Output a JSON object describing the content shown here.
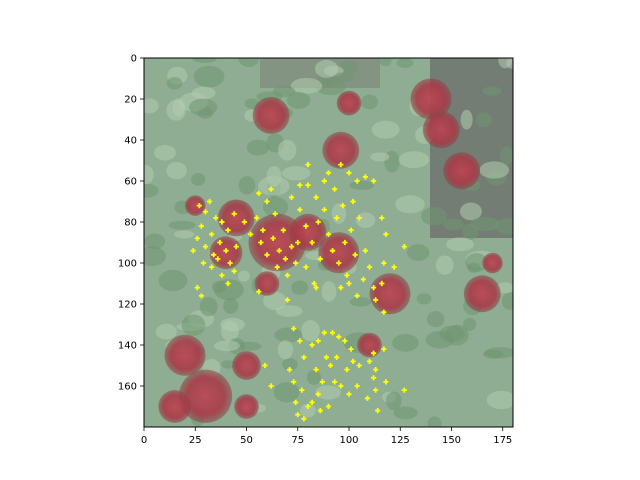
{
  "chart_data": {
    "type": "scatter",
    "title": "",
    "xlabel": "",
    "ylabel": "",
    "xlim": [
      0,
      180
    ],
    "ylim": [
      180,
      0
    ],
    "x_ticks": [
      0,
      25,
      50,
      75,
      100,
      125,
      150,
      175
    ],
    "y_ticks": [
      0,
      20,
      40,
      60,
      80,
      100,
      120,
      140,
      160
    ],
    "grid": false,
    "background": "downscaled photo of red roses among green foliage",
    "series": [
      {
        "marker": "+",
        "color": "#ffff00",
        "points": [
          [
            27,
            72
          ],
          [
            30,
            75
          ],
          [
            32,
            70
          ],
          [
            35,
            78
          ],
          [
            28,
            82
          ],
          [
            33,
            86
          ],
          [
            38,
            80
          ],
          [
            41,
            84
          ],
          [
            44,
            76
          ],
          [
            37,
            90
          ],
          [
            30,
            92
          ],
          [
            34,
            96
          ],
          [
            40,
            94
          ],
          [
            45,
            92
          ],
          [
            29,
            100
          ],
          [
            33,
            102
          ],
          [
            36,
            98
          ],
          [
            42,
            100
          ],
          [
            38,
            106
          ],
          [
            41,
            110
          ],
          [
            44,
            104
          ],
          [
            26,
            112
          ],
          [
            28,
            116
          ],
          [
            26,
            88
          ],
          [
            49,
            80
          ],
          [
            52,
            86
          ],
          [
            55,
            78
          ],
          [
            58,
            84
          ],
          [
            57,
            90
          ],
          [
            60,
            96
          ],
          [
            63,
            88
          ],
          [
            66,
            94
          ],
          [
            65,
            102
          ],
          [
            69,
            98
          ],
          [
            72,
            92
          ],
          [
            74,
            100
          ],
          [
            70,
            106
          ],
          [
            68,
            84
          ],
          [
            64,
            76
          ],
          [
            60,
            70
          ],
          [
            56,
            66
          ],
          [
            62,
            64
          ],
          [
            72,
            68
          ],
          [
            76,
            74
          ],
          [
            79,
            82
          ],
          [
            82,
            90
          ],
          [
            85,
            80
          ],
          [
            88,
            74
          ],
          [
            86,
            98
          ],
          [
            90,
            86
          ],
          [
            92,
            94
          ],
          [
            95,
            100
          ],
          [
            98,
            90
          ],
          [
            94,
            78
          ],
          [
            97,
            72
          ],
          [
            101,
            84
          ],
          [
            103,
            96
          ],
          [
            99,
            106
          ],
          [
            96,
            112
          ],
          [
            100,
            110
          ],
          [
            104,
            116
          ],
          [
            107,
            108
          ],
          [
            110,
            102
          ],
          [
            112,
            112
          ],
          [
            113,
            118
          ],
          [
            108,
            94
          ],
          [
            105,
            78
          ],
          [
            102,
            70
          ],
          [
            93,
            64
          ],
          [
            88,
            60
          ],
          [
            80,
            62
          ],
          [
            84,
            68
          ],
          [
            76,
            62
          ],
          [
            80,
            52
          ],
          [
            90,
            56
          ],
          [
            96,
            52
          ],
          [
            100,
            56
          ],
          [
            104,
            60
          ],
          [
            108,
            58
          ],
          [
            112,
            60
          ],
          [
            116,
            78
          ],
          [
            118,
            86
          ],
          [
            117,
            100
          ],
          [
            122,
            102
          ],
          [
            127,
            92
          ],
          [
            116,
            110
          ],
          [
            117,
            124
          ],
          [
            79,
            102
          ],
          [
            83,
            110
          ],
          [
            75,
            90
          ],
          [
            73,
            132
          ],
          [
            76,
            138
          ],
          [
            78,
            146
          ],
          [
            71,
            152
          ],
          [
            73,
            158
          ],
          [
            77,
            162
          ],
          [
            74,
            168
          ],
          [
            75,
            174
          ],
          [
            78,
            176
          ],
          [
            82,
            168
          ],
          [
            85,
            164
          ],
          [
            87,
            158
          ],
          [
            84,
            152
          ],
          [
            82,
            140
          ],
          [
            85,
            138
          ],
          [
            88,
            134
          ],
          [
            92,
            134
          ],
          [
            95,
            136
          ],
          [
            98,
            138
          ],
          [
            101,
            142
          ],
          [
            102,
            148
          ],
          [
            105,
            150
          ],
          [
            110,
            148
          ],
          [
            113,
            152
          ],
          [
            112,
            156
          ],
          [
            117,
            142
          ],
          [
            112,
            144
          ],
          [
            118,
            158
          ],
          [
            113,
            162
          ],
          [
            109,
            166
          ],
          [
            104,
            160
          ],
          [
            100,
            164
          ],
          [
            96,
            160
          ],
          [
            93,
            158
          ],
          [
            91,
            150
          ],
          [
            89,
            146
          ],
          [
            94,
            146
          ],
          [
            99,
            152
          ],
          [
            86,
            172
          ],
          [
            90,
            170
          ],
          [
            80,
            170
          ],
          [
            59,
            150
          ],
          [
            62,
            160
          ],
          [
            127,
            162
          ],
          [
            114,
            172
          ],
          [
            56,
            114
          ],
          [
            70,
            118
          ],
          [
            84,
            112
          ],
          [
            24,
            94
          ]
        ]
      }
    ]
  }
}
